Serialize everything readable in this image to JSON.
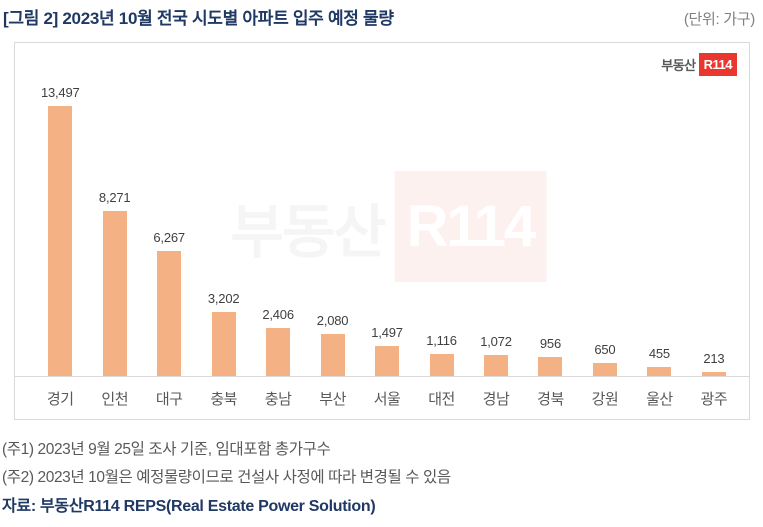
{
  "header": {
    "title": "[그림 2] 2023년 10월 전국 시도별 아파트 입주 예정 물량",
    "unit_label": "(단위: 가구)"
  },
  "chart_data": {
    "type": "bar",
    "title": "2023년 10월 전국 시도별 아파트 입주 예정 물량",
    "categories": [
      "경기",
      "인천",
      "대구",
      "충북",
      "충남",
      "부산",
      "서울",
      "대전",
      "경남",
      "경북",
      "강원",
      "울산",
      "광주"
    ],
    "values": [
      13497,
      8271,
      6267,
      3202,
      2406,
      2080,
      1497,
      1116,
      1072,
      956,
      650,
      455,
      213
    ],
    "value_labels": [
      "13,497",
      "8,271",
      "6,267",
      "3,202",
      "2,406",
      "2,080",
      "1,497",
      "1,116",
      "1,072",
      "956",
      "650",
      "455",
      "213"
    ],
    "xlabel": "",
    "ylabel": "",
    "unit": "가구",
    "ylim": [
      0,
      13500
    ],
    "grid": false,
    "legend": false,
    "bar_color": "#F4B183",
    "axis_color": "#D9D9D9",
    "value_label_color": "#404040",
    "category_label_color": "#595959"
  },
  "branding": {
    "logo_text": "부동산",
    "logo_badge": "R114",
    "logo_badge_color": "#E9362F",
    "watermark_text": "부동산",
    "watermark_badge": "R114"
  },
  "footnotes": {
    "note1": "(주1) 2023년 9월 25일 조사 기준, 임대포함 총가구수",
    "note2": "(주2) 2023년 10월은 예정물량이므로 건설사 사정에 따라 변경될 수 있음",
    "source": "자료: 부동산R114 REPS(Real Estate Power Solution)"
  },
  "colors": {
    "title_navy": "#1F3864",
    "note_gray": "#595959",
    "frame_border": "#D9D9D9"
  }
}
